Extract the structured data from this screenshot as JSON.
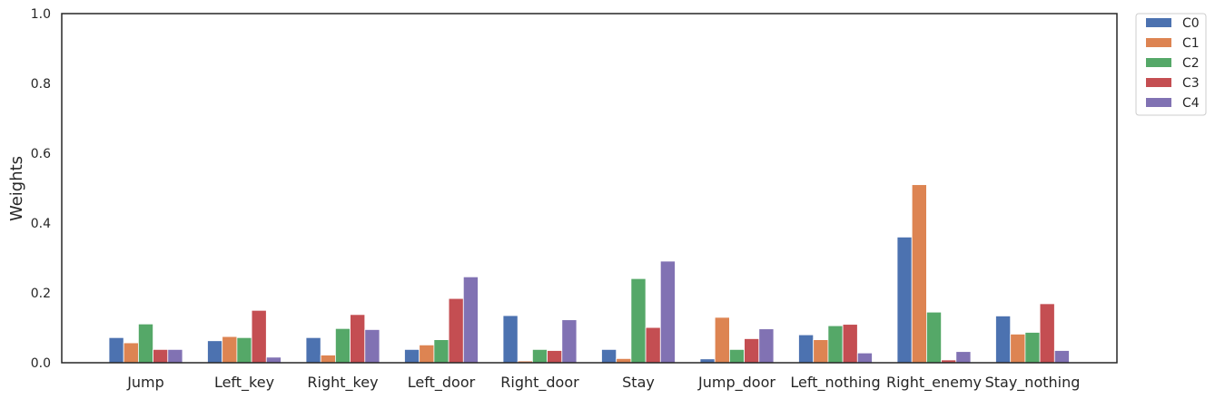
{
  "chart_data": {
    "type": "bar",
    "title": "",
    "xlabel": "",
    "ylabel": "Weights",
    "ylim": [
      0,
      1.0
    ],
    "yticks": [
      "0.0",
      "0.2",
      "0.4",
      "0.6",
      "0.8",
      "1.0"
    ],
    "grid": false,
    "legend_position": "outside-top-right",
    "categories": [
      "Jump",
      "Left_key",
      "Right_key",
      "Left_door",
      "Right_door",
      "Stay",
      "Jump_door",
      "Left_nothing",
      "Right_enemy",
      "Stay_nothing"
    ],
    "series": [
      {
        "name": "C0",
        "color": "#4c72b0",
        "values": [
          0.072,
          0.063,
          0.072,
          0.038,
          0.135,
          0.038,
          0.011,
          0.08,
          0.36,
          0.134
        ]
      },
      {
        "name": "C1",
        "color": "#dd8452",
        "values": [
          0.057,
          0.075,
          0.022,
          0.051,
          0.005,
          0.012,
          0.13,
          0.066,
          0.51,
          0.082
        ]
      },
      {
        "name": "C2",
        "color": "#55a868",
        "values": [
          0.111,
          0.072,
          0.098,
          0.066,
          0.038,
          0.241,
          0.038,
          0.106,
          0.145,
          0.087
        ]
      },
      {
        "name": "C3",
        "color": "#c44e52",
        "values": [
          0.038,
          0.15,
          0.138,
          0.184,
          0.035,
          0.101,
          0.069,
          0.11,
          0.008,
          0.169
        ]
      },
      {
        "name": "C4",
        "color": "#8172b3",
        "values": [
          0.038,
          0.016,
          0.095,
          0.246,
          0.123,
          0.291,
          0.097,
          0.028,
          0.032,
          0.035
        ]
      }
    ]
  }
}
